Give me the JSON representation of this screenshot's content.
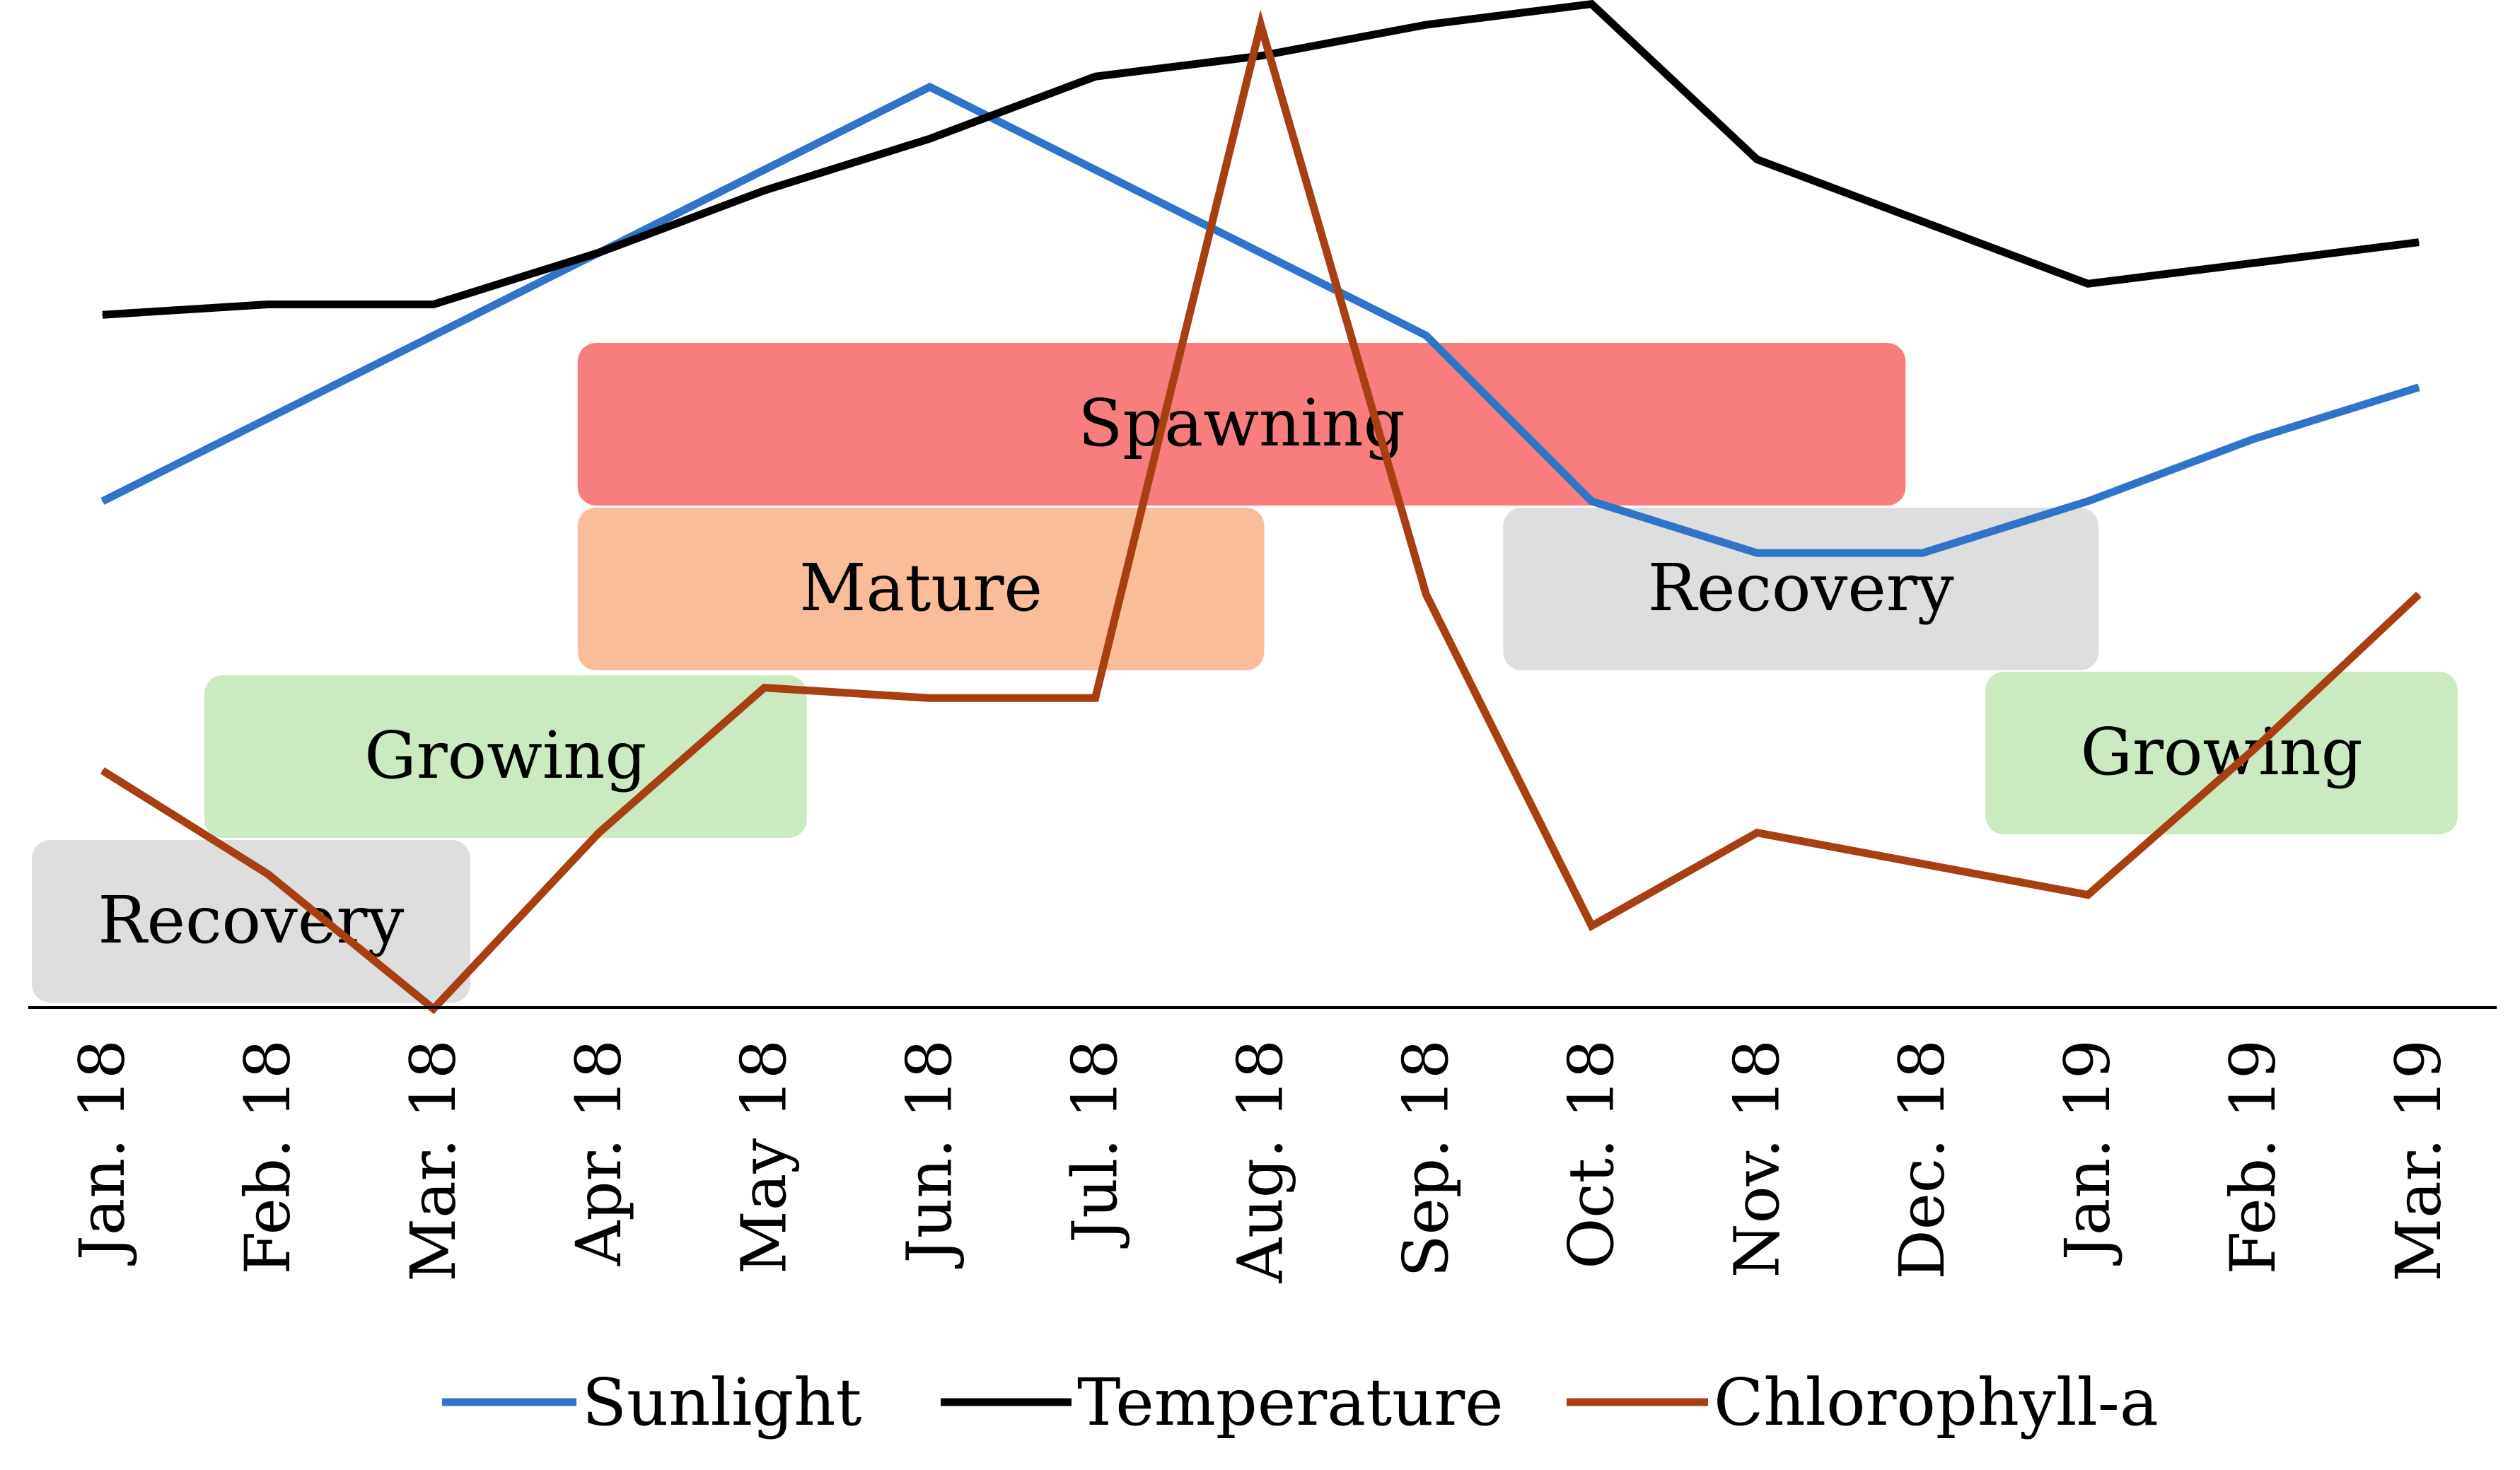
{
  "chart_data": {
    "type": "line",
    "title": "",
    "xlabel": "",
    "ylabel": "",
    "categories": [
      "Jan. 18",
      "Feb. 18",
      "Mar. 18",
      "Apr. 18",
      "May 18",
      "Jun. 18",
      "Jul. 18",
      "Aug. 18",
      "Sep. 18",
      "Oct. 18",
      "Nov. 18",
      "Dec. 18",
      "Jan. 19",
      "Feb. 19",
      "Mar. 19"
    ],
    "ylim": [
      0,
      100
    ],
    "grid": false,
    "legend_position": "bottom",
    "series": [
      {
        "name": "Sunlight",
        "color": "#2e75c9",
        "values": [
          54,
          62,
          70,
          78,
          86,
          94,
          86,
          78,
          70,
          54,
          49,
          49,
          54,
          60,
          65
        ]
      },
      {
        "name": "Temperature",
        "color": "#000000",
        "values": [
          72,
          73,
          73,
          78,
          84,
          89,
          95,
          97,
          100,
          102,
          87,
          81,
          75,
          77,
          79
        ]
      },
      {
        "name": "Chlorophyll-a",
        "color": "#a83f10",
        "values": [
          28,
          18,
          5,
          22,
          36,
          35,
          35,
          100,
          45,
          13,
          22,
          19,
          16,
          30,
          45
        ]
      }
    ],
    "phases": [
      {
        "label": "Recovery",
        "start": "Jan. 18",
        "end": "Mar. 18",
        "color": "#d9d9d9"
      },
      {
        "label": "Growing",
        "start": "Feb. 18",
        "end": "May 18",
        "color": "#c5e7b8"
      },
      {
        "label": "Mature",
        "start": "Apr. 18",
        "end": "Aug. 18",
        "color": "#fbb38a"
      },
      {
        "label": "Spawning",
        "start": "Apr. 18",
        "end": "Nov. 18",
        "color": "#f76b6b"
      },
      {
        "label": "Recovery",
        "start": "Oct. 18",
        "end": "Jan. 19",
        "color": "#d9d9d9"
      },
      {
        "label": "Growing",
        "start": "Jan. 19",
        "end": "Mar. 19",
        "color": "#c5e7b8"
      }
    ]
  }
}
